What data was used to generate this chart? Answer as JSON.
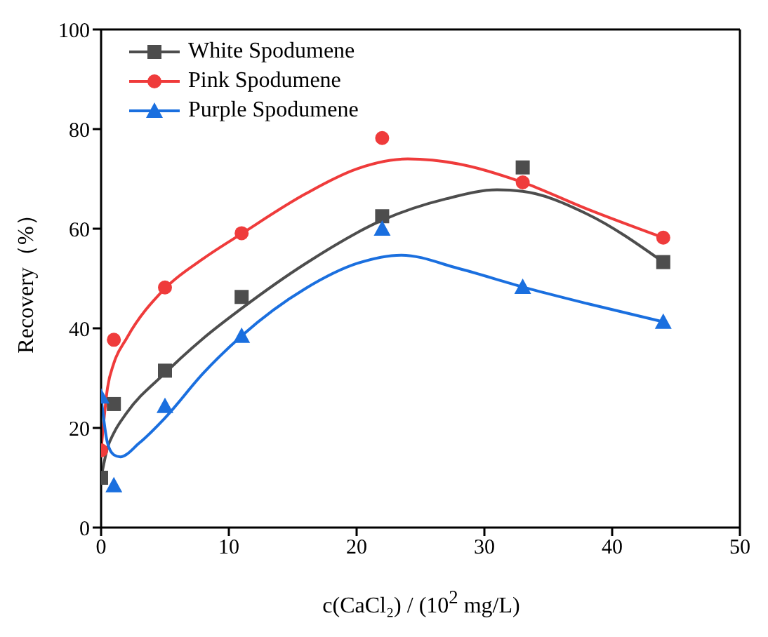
{
  "chart_data": {
    "type": "scatter",
    "xlabel": "c(CaCl₂) / (10$^{2}$ mg/L)",
    "ylabel": "Recovery（%）",
    "x": [
      0,
      1,
      5,
      11,
      22,
      33,
      44
    ],
    "xlim": [
      0,
      50
    ],
    "xticks": [
      0,
      10,
      20,
      30,
      40,
      50
    ],
    "ylim": [
      0,
      100
    ],
    "yticks": [
      0,
      20,
      40,
      60,
      80,
      100
    ],
    "legend": "top left",
    "series": [
      {
        "name": "White Spodumene",
        "color": "#4d4d4d",
        "marker": "square",
        "values": [
          10,
          24.8,
          31.5,
          46.3,
          62.5,
          72.3,
          53.3
        ]
      },
      {
        "name": "Pink Spodumene",
        "color": "#ef3b3b",
        "marker": "circle",
        "values": [
          15.5,
          37.7,
          48.2,
          59.1,
          78.2,
          69.3,
          58.2
        ]
      },
      {
        "name": "Purple Spodumene",
        "color": "#1a6fdf",
        "marker": "triangle",
        "values": [
          26.3,
          8.5,
          24.4,
          38.5,
          60,
          48.3,
          41.3
        ]
      },
      {
        "type": "line",
        "color": "#4d4d4d",
        "marker": "none",
        "x": [
          0,
          0.5,
          1,
          2,
          5,
          8,
          11,
          16,
          22,
          27,
          31,
          33,
          38,
          44
        ],
        "values": [
          10,
          16,
          19,
          23,
          31,
          38,
          44,
          53,
          61.7,
          66,
          67.8,
          67.5,
          63,
          53.3
        ]
      },
      {
        "type": "line",
        "color": "#ef3b3b",
        "marker": "none",
        "x": [
          0,
          0.5,
          1,
          2,
          5,
          8,
          11,
          16,
          20,
          24,
          28,
          33,
          38,
          44
        ],
        "values": [
          15.5,
          28,
          33,
          38,
          48,
          54,
          59,
          67,
          72,
          74,
          73,
          69.3,
          64,
          58.2
        ]
      },
      {
        "type": "line",
        "color": "#1a6fdf",
        "marker": "none",
        "x": [
          0,
          0.5,
          1,
          1.5,
          3,
          5,
          8,
          11,
          16,
          20,
          23.5,
          28,
          33,
          38,
          44
        ],
        "values": [
          26.3,
          17,
          14.6,
          14.2,
          17,
          22,
          31,
          38.5,
          48,
          53,
          54.7,
          52,
          48.3,
          45,
          41.3
        ]
      }
    ]
  }
}
